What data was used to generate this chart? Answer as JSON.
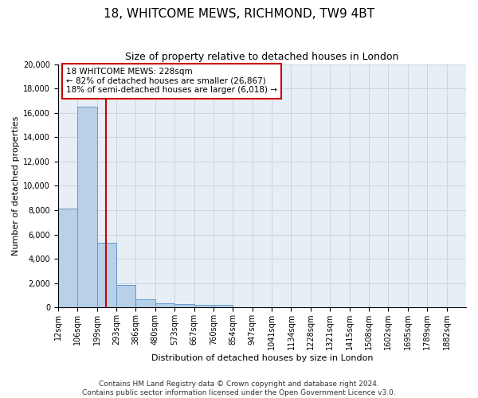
{
  "title": "18, WHITCOME MEWS, RICHMOND, TW9 4BT",
  "subtitle": "Size of property relative to detached houses in London",
  "xlabel": "Distribution of detached houses by size in London",
  "ylabel": "Number of detached properties",
  "footnote": "Contains HM Land Registry data © Crown copyright and database right 2024.\nContains public sector information licensed under the Open Government Licence v3.0.",
  "bar_labels": [
    "12sqm",
    "106sqm",
    "199sqm",
    "293sqm",
    "386sqm",
    "480sqm",
    "573sqm",
    "667sqm",
    "760sqm",
    "854sqm",
    "947sqm",
    "1041sqm",
    "1134sqm",
    "1228sqm",
    "1321sqm",
    "1415sqm",
    "1508sqm",
    "1602sqm",
    "1695sqm",
    "1789sqm",
    "1882sqm"
  ],
  "bar_heights": [
    8100,
    16500,
    5300,
    1850,
    700,
    370,
    280,
    210,
    190,
    0,
    0,
    0,
    0,
    0,
    0,
    0,
    0,
    0,
    0,
    0,
    0
  ],
  "n_bins": 21,
  "bar_color": "#b8d0e8",
  "bar_edge_color": "#6699cc",
  "vline_bin": 2.46,
  "vline_color": "#cc0000",
  "annotation_text": "18 WHITCOME MEWS: 228sqm\n← 82% of detached houses are smaller (26,867)\n18% of semi-detached houses are larger (6,018) →",
  "annotation_box_color": "#ffffff",
  "annotation_box_edge": "#cc0000",
  "ylim": [
    0,
    20000
  ],
  "yticks": [
    0,
    2000,
    4000,
    6000,
    8000,
    10000,
    12000,
    14000,
    16000,
    18000,
    20000
  ],
  "grid_color": "#c8d0dc",
  "bg_color": "#e8eef6",
  "title_fontsize": 11,
  "subtitle_fontsize": 9,
  "label_fontsize": 8,
  "tick_fontsize": 7,
  "annotation_fontsize": 7.5,
  "footnote_fontsize": 6.5
}
